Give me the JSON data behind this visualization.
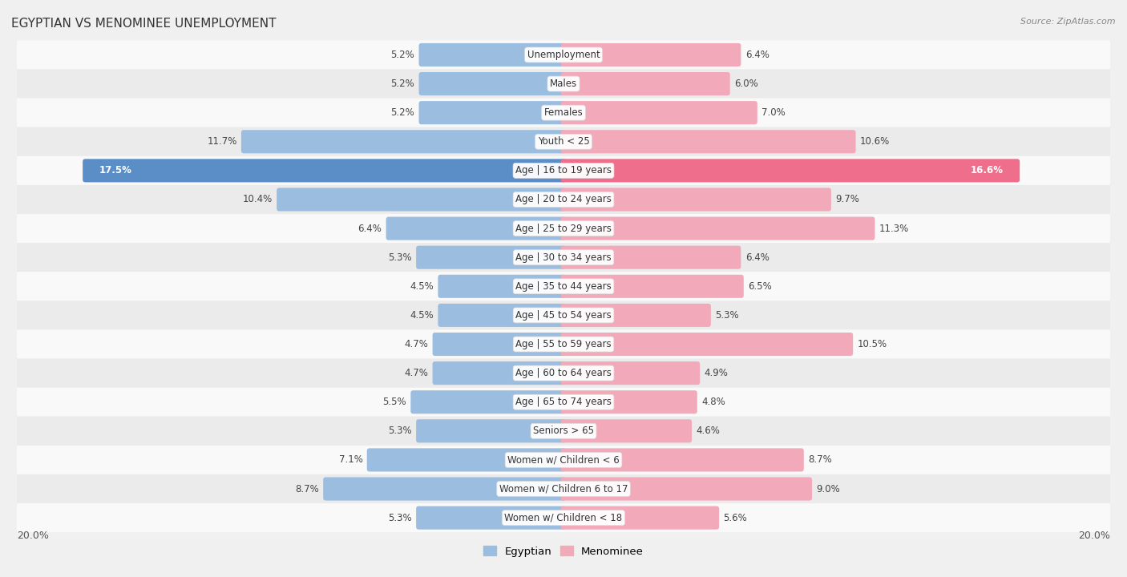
{
  "title": "EGYPTIAN VS MENOMINEE UNEMPLOYMENT",
  "source": "Source: ZipAtlas.com",
  "categories": [
    "Unemployment",
    "Males",
    "Females",
    "Youth < 25",
    "Age | 16 to 19 years",
    "Age | 20 to 24 years",
    "Age | 25 to 29 years",
    "Age | 30 to 34 years",
    "Age | 35 to 44 years",
    "Age | 45 to 54 years",
    "Age | 55 to 59 years",
    "Age | 60 to 64 years",
    "Age | 65 to 74 years",
    "Seniors > 65",
    "Women w/ Children < 6",
    "Women w/ Children 6 to 17",
    "Women w/ Children < 18"
  ],
  "egyptian": [
    5.2,
    5.2,
    5.2,
    11.7,
    17.5,
    10.4,
    6.4,
    5.3,
    4.5,
    4.5,
    4.7,
    4.7,
    5.5,
    5.3,
    7.1,
    8.7,
    5.3
  ],
  "menominee": [
    6.4,
    6.0,
    7.0,
    10.6,
    16.6,
    9.7,
    11.3,
    6.4,
    6.5,
    5.3,
    10.5,
    4.9,
    4.8,
    4.6,
    8.7,
    9.0,
    5.6
  ],
  "egyptian_color": "#9BBDE0",
  "menominee_color": "#F2AABB",
  "highlight_egyptian_color": "#5B8EC7",
  "highlight_menominee_color": "#EE6E8C",
  "row_color_even": "#f9f9f9",
  "row_color_odd": "#ebebeb",
  "background_color": "#f0f0f0",
  "xlim": 20.0,
  "bar_height": 0.62,
  "label_fontsize": 8.5,
  "cat_fontsize": 8.5,
  "title_fontsize": 11,
  "source_fontsize": 8
}
